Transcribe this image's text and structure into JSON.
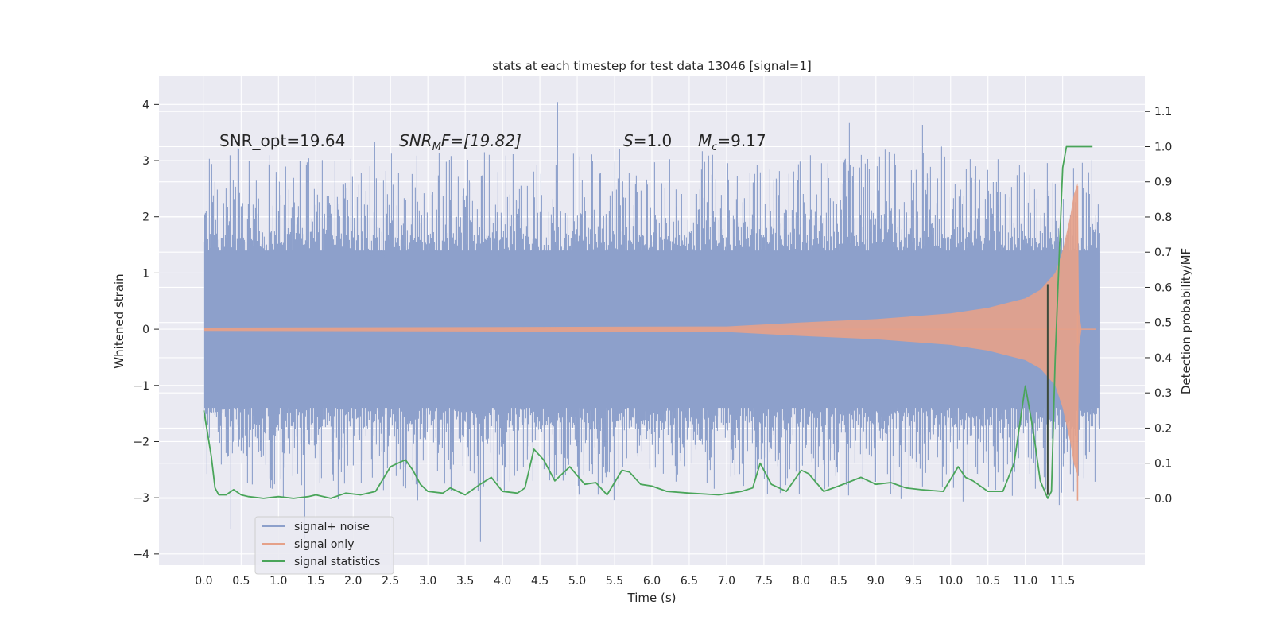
{
  "chart_data": {
    "type": "line",
    "title": "stats at each timestep for test data 13046 [signal=1]",
    "xlabel": "Time (s)",
    "ylabel": "Whitened strain",
    "y2label": "Detection probability/MF",
    "xlim": [
      -0.6,
      12.6
    ],
    "ylim": [
      -4.2,
      4.5
    ],
    "y2lim": [
      -0.19,
      1.2
    ],
    "xticks": [
      "0.0",
      "0.5",
      "1.0",
      "1.5",
      "2.0",
      "2.5",
      "3.0",
      "3.5",
      "4.0",
      "4.5",
      "5.0",
      "5.5",
      "6.0",
      "6.5",
      "7.0",
      "7.5",
      "8.0",
      "8.5",
      "9.0",
      "9.5",
      "10.0",
      "10.5",
      "11.0",
      "11.5"
    ],
    "yticks": [
      "4",
      "3",
      "2",
      "1",
      "0",
      "−1",
      "−2",
      "−3",
      "−4"
    ],
    "y2ticks": [
      "1.1",
      "1.0",
      "0.9",
      "0.8",
      "0.7",
      "0.6",
      "0.5",
      "0.4",
      "0.3",
      "0.2",
      "0.1",
      "0.0"
    ],
    "grid": true,
    "legend_position": "bottom-left",
    "colors": {
      "background": "#eaeaf2",
      "grid": "#ffffff",
      "noise": "#8da0cb",
      "signal": "#e5a189",
      "stats": "#4aa55a"
    },
    "annotations": {
      "snr_opt": "SNR_opt=19.64",
      "snr_mf_main": "SNR",
      "snr_mf_sub": "M",
      "snr_mf_rest": "F=[19.82]",
      "s_main": "S",
      "s_rest": "=1.0",
      "mc_main": "M",
      "mc_sub": "c",
      "mc_rest": "=9.17"
    },
    "series": [
      {
        "name": "signal+ noise",
        "kind": "noise-band",
        "x_range": [
          0.0,
          12.0
        ],
        "core_range": [
          -1.4,
          1.4
        ],
        "typical_peak": 2.6,
        "max": 4.1,
        "min": -3.8
      },
      {
        "name": "signal only",
        "kind": "chirp-envelope",
        "x": [
          0.0,
          7.0,
          8.0,
          9.0,
          10.0,
          10.5,
          11.0,
          11.2,
          11.4,
          11.5,
          11.6,
          11.65,
          11.7,
          11.72,
          11.75
        ],
        "envelope": [
          0.03,
          0.05,
          0.12,
          0.18,
          0.28,
          0.38,
          0.55,
          0.7,
          1.0,
          1.4,
          2.0,
          2.4,
          2.6,
          0.3,
          0.03
        ]
      },
      {
        "name": "signal statistics",
        "kind": "line",
        "axis": "right",
        "x": [
          0.0,
          0.1,
          0.15,
          0.2,
          0.3,
          0.4,
          0.5,
          0.6,
          0.8,
          1.0,
          1.2,
          1.4,
          1.5,
          1.7,
          1.9,
          2.1,
          2.3,
          2.5,
          2.7,
          2.8,
          2.9,
          3.0,
          3.2,
          3.3,
          3.5,
          3.7,
          3.85,
          4.0,
          4.2,
          4.3,
          4.42,
          4.55,
          4.7,
          4.9,
          5.1,
          5.25,
          5.4,
          5.6,
          5.7,
          5.85,
          6.0,
          6.2,
          6.5,
          6.9,
          7.2,
          7.35,
          7.45,
          7.6,
          7.8,
          8.0,
          8.1,
          8.3,
          8.5,
          8.8,
          9.0,
          9.2,
          9.4,
          9.6,
          9.9,
          10.1,
          10.2,
          10.3,
          10.5,
          10.7,
          10.85,
          11.0,
          11.1,
          11.2,
          11.3,
          11.35,
          11.4,
          11.5,
          11.55,
          11.7,
          11.9
        ],
        "values": [
          0.25,
          0.12,
          0.03,
          0.01,
          0.01,
          0.025,
          0.01,
          0.005,
          0.0,
          0.005,
          0.0,
          0.005,
          0.01,
          0.0,
          0.015,
          0.01,
          0.02,
          0.09,
          0.11,
          0.08,
          0.04,
          0.02,
          0.015,
          0.03,
          0.01,
          0.04,
          0.06,
          0.02,
          0.015,
          0.03,
          0.14,
          0.11,
          0.05,
          0.09,
          0.04,
          0.045,
          0.01,
          0.08,
          0.075,
          0.04,
          0.035,
          0.02,
          0.015,
          0.01,
          0.02,
          0.03,
          0.1,
          0.04,
          0.02,
          0.08,
          0.07,
          0.02,
          0.035,
          0.06,
          0.04,
          0.045,
          0.03,
          0.025,
          0.02,
          0.09,
          0.06,
          0.05,
          0.02,
          0.02,
          0.1,
          0.32,
          0.2,
          0.05,
          0.0,
          0.02,
          0.4,
          0.94,
          1.0,
          1.0,
          1.0
        ]
      }
    ]
  }
}
